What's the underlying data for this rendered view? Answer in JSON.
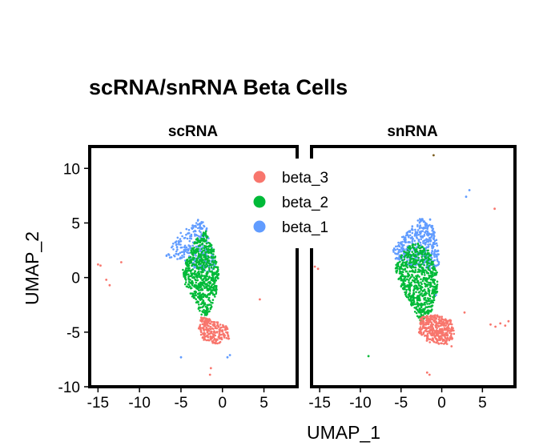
{
  "chart_data": {
    "type": "scatter",
    "title": "scRNA/snRNA Beta Cells",
    "xlabel": "UMAP_1",
    "ylabel": "UMAP_2",
    "xlim": [
      -16,
      9
    ],
    "ylim": [
      -10,
      12
    ],
    "x_ticks": [
      -15,
      -10,
      -5,
      0,
      5
    ],
    "y_ticks": [
      -10,
      -5,
      0,
      5,
      10
    ],
    "legend_position": "inside-top-center",
    "series": [
      {
        "name": "beta_3",
        "color": "#F8766D"
      },
      {
        "name": "beta_2",
        "color": "#00BA38"
      },
      {
        "name": "beta_1",
        "color": "#619CFF"
      }
    ],
    "panels": [
      {
        "label": "scRNA",
        "clusters": [
          {
            "series": "beta_1",
            "polygon": [
              [
                -6.5,
                2.5
              ],
              [
                -5.5,
                3.8
              ],
              [
                -4.2,
                4.6
              ],
              [
                -3.0,
                5.3
              ],
              [
                -2.0,
                5.0
              ],
              [
                -1.3,
                3.0
              ],
              [
                -0.7,
                1.0
              ],
              [
                -1.5,
                0.5
              ],
              [
                -3.5,
                0.8
              ],
              [
                -5.5,
                1.5
              ],
              [
                -6.8,
                1.9
              ]
            ],
            "n": 260
          },
          {
            "series": "beta_2",
            "polygon": [
              [
                -4.8,
                0.8
              ],
              [
                -3.2,
                3.5
              ],
              [
                -2.0,
                4.3
              ],
              [
                -0.9,
                2.5
              ],
              [
                -0.4,
                0.5
              ],
              [
                -0.8,
                -1.8
              ],
              [
                -1.6,
                -3.3
              ],
              [
                -2.3,
                -3.8
              ],
              [
                -3.3,
                -2.2
              ],
              [
                -4.5,
                -0.6
              ]
            ],
            "n": 650
          },
          {
            "series": "beta_3",
            "polygon": [
              [
                -2.6,
                -3.6
              ],
              [
                -1.0,
                -3.9
              ],
              [
                0.6,
                -4.5
              ],
              [
                0.8,
                -5.6
              ],
              [
                -0.5,
                -6.1
              ],
              [
                -2.2,
                -5.8
              ],
              [
                -2.9,
                -4.8
              ]
            ],
            "n": 240
          }
        ],
        "outliers": [
          {
            "series": "beta_3",
            "points": [
              [
                -15.0,
                1.2
              ],
              [
                -14.7,
                1.1
              ],
              [
                -12.2,
                1.4
              ],
              [
                -14.0,
                -0.2
              ],
              [
                -13.6,
                -0.7
              ],
              [
                4.5,
                -2.0
              ],
              [
                -1.4,
                -8.3
              ],
              [
                -1.5,
                -8.9
              ]
            ]
          },
          {
            "series": "beta_1",
            "points": [
              [
                -5.0,
                -7.3
              ],
              [
                0.9,
                -7.1
              ],
              [
                0.6,
                -7.3
              ]
            ]
          }
        ]
      },
      {
        "label": "snRNA",
        "clusters": [
          {
            "series": "beta_1",
            "polygon": [
              [
                -6.3,
                2.2
              ],
              [
                -5.0,
                3.6
              ],
              [
                -3.6,
                4.8
              ],
              [
                -2.4,
                5.6
              ],
              [
                -1.3,
                5.4
              ],
              [
                -0.6,
                3.4
              ],
              [
                -0.2,
                1.2
              ],
              [
                -1.4,
                0.6
              ],
              [
                -3.6,
                1.0
              ],
              [
                -5.5,
                1.6
              ]
            ],
            "n": 420
          },
          {
            "series": "beta_2",
            "polygon": [
              [
                -5.8,
                1.0
              ],
              [
                -4.4,
                2.7
              ],
              [
                -3.1,
                3.2
              ],
              [
                -1.6,
                2.5
              ],
              [
                -0.6,
                0.8
              ],
              [
                -0.5,
                -1.3
              ],
              [
                -1.4,
                -3.4
              ],
              [
                -2.5,
                -4.2
              ],
              [
                -3.6,
                -2.7
              ],
              [
                -5.0,
                -0.9
              ]
            ],
            "n": 700
          },
          {
            "series": "beta_3",
            "polygon": [
              [
                -2.6,
                -3.6
              ],
              [
                -0.6,
                -3.4
              ],
              [
                1.2,
                -3.9
              ],
              [
                1.6,
                -5.3
              ],
              [
                0.8,
                -6.2
              ],
              [
                -1.6,
                -6.0
              ],
              [
                -2.8,
                -5.1
              ]
            ],
            "n": 380
          }
        ],
        "outliers": [
          {
            "series": "beta_3",
            "points": [
              [
                -15.6,
                1.0
              ],
              [
                -15.2,
                0.8
              ],
              [
                6.5,
                6.3
              ],
              [
                6.0,
                -4.3
              ],
              [
                6.6,
                -4.5
              ],
              [
                7.2,
                -4.2
              ],
              [
                7.8,
                -4.4
              ],
              [
                8.2,
                -4.0
              ],
              [
                2.8,
                -3.2
              ],
              [
                -1.8,
                -8.7
              ],
              [
                -1.5,
                -8.9
              ],
              [
                1.2,
                -6.3
              ]
            ]
          },
          {
            "series": "beta_1",
            "points": [
              [
                3.4,
                8.0
              ],
              [
                3.0,
                7.4
              ],
              [
                -0.7,
                -1.6
              ]
            ]
          },
          {
            "series": "beta_2",
            "points": [
              [
                -9.0,
                -7.2
              ],
              [
                -2.3,
                -3.0
              ]
            ]
          },
          {
            "series": "brown",
            "color": "#7A5C1E",
            "points": [
              [
                -1.0,
                11.2
              ]
            ]
          }
        ]
      }
    ]
  }
}
